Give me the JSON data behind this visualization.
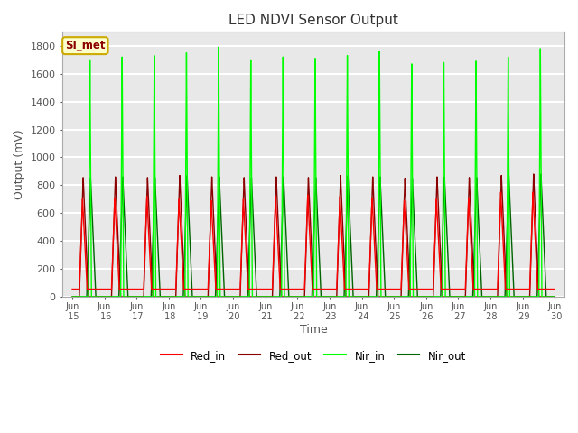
{
  "title": "LED NDVI Sensor Output",
  "xlabel": "Time",
  "ylabel": "Output (mV)",
  "ylim": [
    0,
    1900
  ],
  "yticks": [
    0,
    200,
    400,
    600,
    800,
    1000,
    1200,
    1400,
    1600,
    1800
  ],
  "xtick_labels": [
    "Jun\n 15",
    "Jun\n 16",
    "Jun\n 17",
    "Jun\n 18",
    "Jun\n 19",
    "Jun\n 20",
    "Jun\n 21",
    "Jun\n 22",
    "Jun\n 23",
    "Jun\n 24",
    "Jun\n 25",
    "Jun\n 26",
    "Jun\n 27",
    "Jun\n 28",
    "Jun\n 29",
    "Jun\n 30"
  ],
  "plot_bg_color": "#e8e8e8",
  "red_in_color": "#ff0000",
  "red_out_color": "#8b0000",
  "nir_in_color": "#00ff00",
  "nir_out_color": "#006400",
  "legend_box_facecolor": "#ffffcc",
  "legend_box_edgecolor": "#ccaa00",
  "legend_text": "SI_met",
  "legend_text_color": "#8b0000",
  "num_cycles": 15,
  "red_in_peak": 700,
  "red_out_peak": 860,
  "nir_in_peak": 1720,
  "nir_out_peak": 860,
  "red_in_baseline": 55,
  "red_out_baseline": 0,
  "nir_in_baseline": 0,
  "nir_out_baseline": 0,
  "nir_in_peaks": [
    1700,
    1720,
    1730,
    1750,
    1790,
    1700,
    1720,
    1710,
    1730,
    1760,
    1670,
    1680,
    1690,
    1720,
    1780
  ],
  "red_in_peaks": [
    700,
    710,
    720,
    700,
    690,
    700,
    720,
    730,
    720,
    710,
    690,
    700,
    710,
    750,
    750
  ],
  "red_out_peaks": [
    855,
    860,
    855,
    870,
    860,
    855,
    860,
    855,
    870,
    860,
    850,
    860,
    855,
    870,
    880
  ],
  "nir_out_peaks": [
    855,
    860,
    855,
    870,
    860,
    855,
    860,
    855,
    870,
    860,
    850,
    860,
    855,
    870,
    880
  ]
}
